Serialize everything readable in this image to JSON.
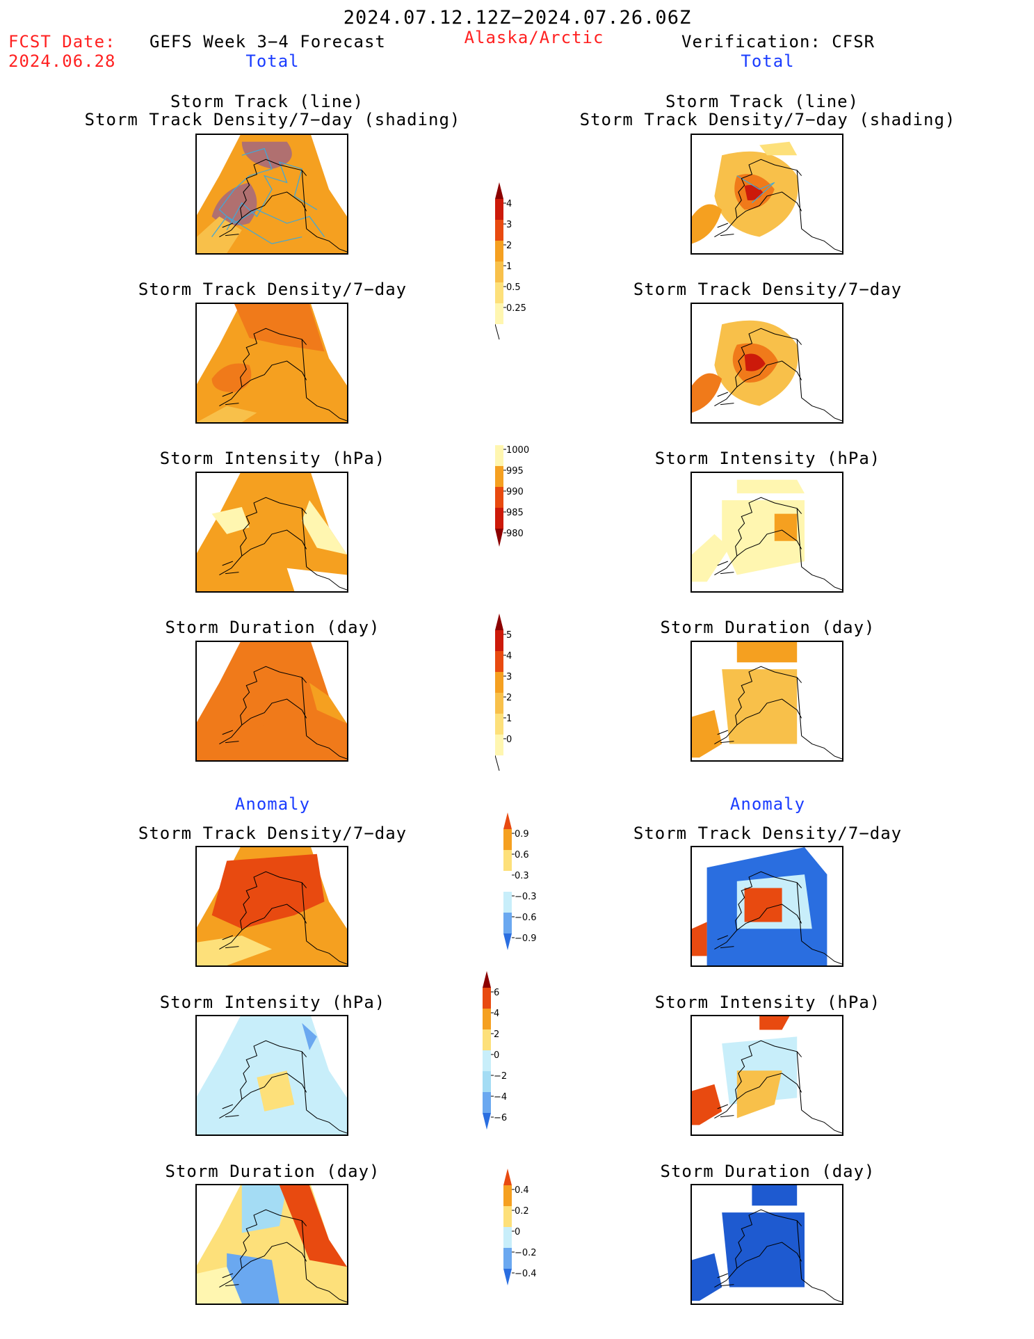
{
  "header": {
    "date_range": "2024.07.12.12Z−2024.07.26.06Z",
    "fcst_label": "FCST Date:",
    "fcst_date": "2024.06.28",
    "model": "GEFS Week 3−4 Forecast",
    "region": "Alaska/Arctic",
    "verification": "Verification: CFSR",
    "total_left": "Total",
    "total_right": "Total",
    "anomaly_left": "Anomaly",
    "anomaly_right": "Anomaly"
  },
  "colors": {
    "c1": "#fff6b0",
    "c2": "#fde07a",
    "c3": "#f8c04a",
    "c4": "#f5a020",
    "c5": "#f07a1a",
    "c6": "#e84a10",
    "c7": "#cc1a0a",
    "c8": "#8c0000",
    "grey": "#b07070",
    "track": "#3fa8d8",
    "b1": "#c8eefa",
    "b2": "#a4dcf4",
    "b3": "#6aa8f0",
    "b4": "#2a6ee0",
    "b5": "#1e5ad0"
  },
  "chart_data": [
    {
      "type": "heatmap",
      "id": "fc-track-shading",
      "title": "Storm Track (line)",
      "subtitle": "Storm Track Density/7−day (shading)"
    },
    {
      "type": "heatmap",
      "id": "obs-track-shading",
      "title": "Storm Track (line)",
      "subtitle": "Storm Track Density/7−day (shading)"
    },
    {
      "type": "heatmap",
      "id": "fc-density",
      "title": "Storm Track Density/7−day"
    },
    {
      "type": "heatmap",
      "id": "obs-density",
      "title": "Storm Track Density/7−day"
    },
    {
      "type": "heatmap",
      "id": "fc-intensity",
      "title": "Storm Intensity (hPa)"
    },
    {
      "type": "heatmap",
      "id": "obs-intensity",
      "title": "Storm Intensity (hPa)"
    },
    {
      "type": "heatmap",
      "id": "fc-duration",
      "title": "Storm Duration (day)"
    },
    {
      "type": "heatmap",
      "id": "obs-duration",
      "title": "Storm Duration (day)"
    },
    {
      "type": "heatmap",
      "id": "fc-density-anom",
      "title": "Storm Track Density/7−day"
    },
    {
      "type": "heatmap",
      "id": "obs-density-anom",
      "title": "Storm Track Density/7−day"
    },
    {
      "type": "heatmap",
      "id": "fc-intensity-anom",
      "title": "Storm Intensity (hPa)"
    },
    {
      "type": "heatmap",
      "id": "obs-intensity-anom",
      "title": "Storm Intensity (hPa)"
    },
    {
      "type": "heatmap",
      "id": "fc-duration-anom",
      "title": "Storm Duration (day)"
    },
    {
      "type": "heatmap",
      "id": "obs-duration-anom",
      "title": "Storm Duration (day)"
    }
  ],
  "colorbars": {
    "density": {
      "labels": [
        "4",
        "3",
        "2",
        "1",
        "0.5",
        "0.25"
      ],
      "colors": [
        "#8c0000",
        "#cc1a0a",
        "#e84a10",
        "#f5a020",
        "#f8c04a",
        "#fde07a",
        "#fff6b0"
      ]
    },
    "intensity": {
      "labels": [
        "1000",
        "995",
        "990",
        "985",
        "980"
      ],
      "colors": [
        "#fff6b0",
        "#f5a020",
        "#e84a10",
        "#cc1a0a",
        "#8c0000"
      ]
    },
    "duration": {
      "labels": [
        "5",
        "4",
        "3",
        "2",
        "1",
        "0"
      ],
      "colors": [
        "#8c0000",
        "#cc1a0a",
        "#e84a10",
        "#f5a020",
        "#f8c04a",
        "#fde07a",
        "#fff6b0"
      ]
    },
    "density_anom": {
      "labels": [
        "0.9",
        "0.6",
        "0.3",
        "−0.3",
        "−0.6",
        "−0.9"
      ],
      "colors": [
        "#e84a10",
        "#f5a020",
        "#fde07a",
        "#ffffff",
        "#c8eefa",
        "#6aa8f0",
        "#2a6ee0"
      ]
    },
    "intensity_anom": {
      "labels": [
        "6",
        "4",
        "2",
        "0",
        "−2",
        "−4",
        "−6"
      ],
      "colors": [
        "#8c0000",
        "#e84a10",
        "#f5a020",
        "#fde07a",
        "#c8eefa",
        "#a4dcf4",
        "#6aa8f0",
        "#2a6ee0"
      ]
    },
    "duration_anom": {
      "labels": [
        "0.4",
        "0.2",
        "0",
        "−0.2",
        "−0.4"
      ],
      "colors": [
        "#e84a10",
        "#f5a020",
        "#fde07a",
        "#c8eefa",
        "#6aa8f0",
        "#2a6ee0"
      ]
    }
  }
}
